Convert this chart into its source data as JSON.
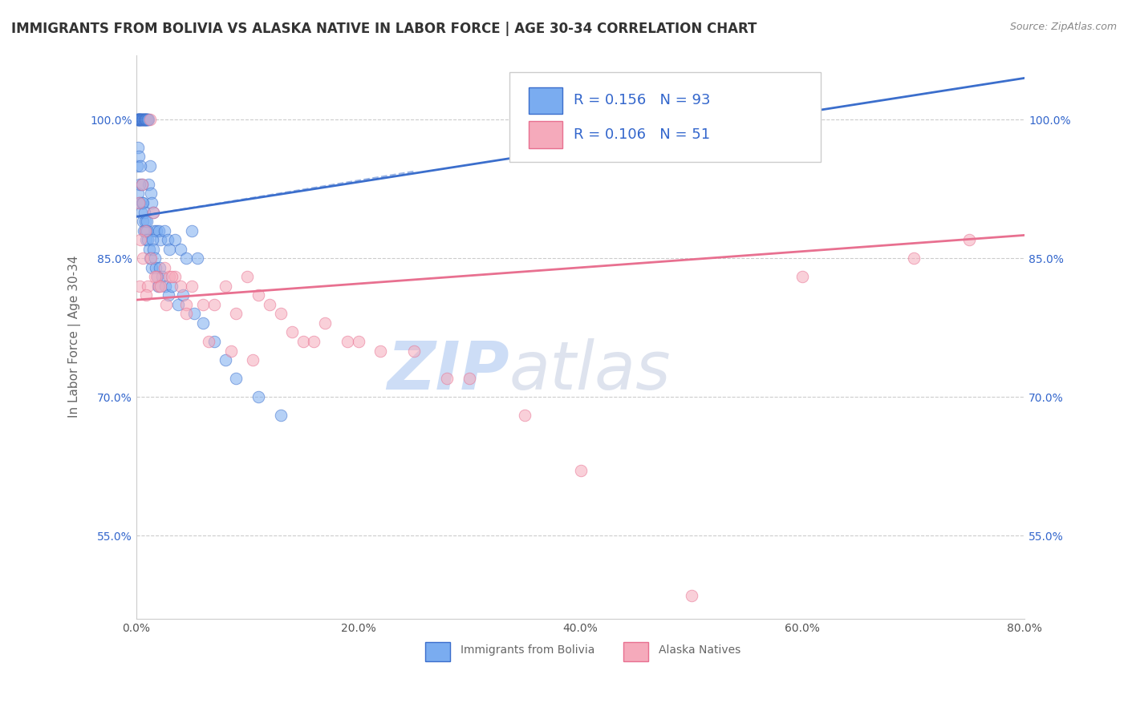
{
  "title": "IMMIGRANTS FROM BOLIVIA VS ALASKA NATIVE IN LABOR FORCE | AGE 30-34 CORRELATION CHART",
  "source_text": "Source: ZipAtlas.com",
  "ylabel": "In Labor Force | Age 30-34",
  "x_tick_labels": [
    "0.0%",
    "20.0%",
    "40.0%",
    "60.0%",
    "80.0%"
  ],
  "x_tick_values": [
    0.0,
    20.0,
    40.0,
    60.0,
    80.0
  ],
  "y_tick_labels": [
    "55.0%",
    "70.0%",
    "85.0%",
    "100.0%"
  ],
  "y_tick_values": [
    55.0,
    70.0,
    85.0,
    100.0
  ],
  "xlim": [
    0.0,
    80.0
  ],
  "ylim": [
    46.0,
    107.0
  ],
  "legend_label1": "Immigrants from Bolivia",
  "legend_label2": "Alaska Natives",
  "R1": "0.156",
  "N1": "93",
  "R2": "0.106",
  "N2": "51",
  "color_blue": "#7AACF0",
  "color_blue_dark": "#3B6ECC",
  "color_pink": "#F5AABB",
  "color_pink_dark": "#E87090",
  "color_text_blue": "#3366CC",
  "watermark_color": "#C5D8F5",
  "background_color": "#FFFFFF",
  "title_fontsize": 12,
  "axis_label_fontsize": 11,
  "tick_fontsize": 10,
  "blue_x": [
    0.1,
    0.1,
    0.15,
    0.15,
    0.2,
    0.2,
    0.25,
    0.25,
    0.3,
    0.3,
    0.35,
    0.35,
    0.4,
    0.4,
    0.45,
    0.5,
    0.5,
    0.55,
    0.6,
    0.6,
    0.65,
    0.7,
    0.7,
    0.75,
    0.8,
    0.8,
    0.85,
    0.9,
    0.9,
    0.95,
    1.0,
    1.0,
    1.1,
    1.1,
    1.2,
    1.3,
    1.4,
    1.5,
    1.6,
    1.8,
    2.0,
    2.2,
    2.5,
    2.8,
    3.0,
    3.5,
    4.0,
    4.5,
    5.0,
    5.5,
    0.1,
    0.12,
    0.18,
    0.22,
    0.28,
    0.32,
    0.38,
    0.42,
    0.48,
    0.52,
    0.58,
    0.62,
    0.68,
    0.72,
    0.78,
    0.82,
    0.88,
    0.92,
    0.98,
    1.05,
    1.15,
    1.25,
    1.35,
    1.45,
    1.55,
    1.65,
    1.75,
    1.85,
    1.95,
    2.1,
    2.3,
    2.6,
    2.9,
    3.2,
    3.8,
    4.2,
    5.2,
    6.0,
    7.0,
    8.0,
    9.0,
    11.0,
    13.0
  ],
  "blue_y": [
    100.0,
    100.0,
    100.0,
    100.0,
    100.0,
    100.0,
    100.0,
    100.0,
    100.0,
    100.0,
    100.0,
    100.0,
    100.0,
    100.0,
    100.0,
    100.0,
    100.0,
    100.0,
    100.0,
    100.0,
    100.0,
    100.0,
    100.0,
    100.0,
    100.0,
    100.0,
    100.0,
    100.0,
    100.0,
    100.0,
    100.0,
    100.0,
    100.0,
    93.0,
    95.0,
    92.0,
    91.0,
    90.0,
    88.0,
    88.0,
    88.0,
    87.0,
    88.0,
    87.0,
    86.0,
    87.0,
    86.0,
    85.0,
    88.0,
    85.0,
    95.0,
    97.0,
    92.0,
    96.0,
    93.0,
    91.0,
    95.0,
    90.0,
    91.0,
    93.0,
    89.0,
    91.0,
    88.0,
    90.0,
    89.0,
    88.0,
    87.0,
    89.0,
    88.0,
    87.0,
    86.0,
    85.0,
    84.0,
    87.0,
    86.0,
    85.0,
    84.0,
    83.0,
    82.0,
    84.0,
    83.0,
    82.0,
    81.0,
    82.0,
    80.0,
    81.0,
    79.0,
    78.0,
    76.0,
    74.0,
    72.0,
    70.0,
    68.0
  ],
  "pink_x": [
    0.2,
    0.3,
    0.5,
    0.8,
    1.0,
    1.2,
    1.5,
    1.8,
    2.0,
    2.5,
    3.0,
    3.5,
    4.0,
    4.5,
    5.0,
    6.0,
    7.0,
    8.0,
    9.0,
    10.0,
    11.0,
    12.0,
    13.0,
    14.0,
    15.0,
    17.0,
    19.0,
    22.0,
    25.0,
    28.0,
    0.4,
    0.6,
    0.9,
    1.3,
    1.7,
    2.2,
    2.7,
    3.2,
    4.5,
    6.5,
    8.5,
    10.5,
    16.0,
    20.0,
    30.0,
    35.0,
    40.0,
    50.0,
    60.0,
    70.0,
    75.0
  ],
  "pink_y": [
    91.0,
    82.0,
    93.0,
    88.0,
    82.0,
    100.0,
    90.0,
    83.0,
    82.0,
    84.0,
    83.0,
    83.0,
    82.0,
    80.0,
    82.0,
    80.0,
    80.0,
    82.0,
    79.0,
    83.0,
    81.0,
    80.0,
    79.0,
    77.0,
    76.0,
    78.0,
    76.0,
    75.0,
    75.0,
    72.0,
    87.0,
    85.0,
    81.0,
    85.0,
    83.0,
    82.0,
    80.0,
    83.0,
    79.0,
    76.0,
    75.0,
    74.0,
    76.0,
    76.0,
    72.0,
    68.0,
    62.0,
    48.5,
    83.0,
    85.0,
    87.0
  ],
  "blue_trend_x": [
    0.0,
    80.0
  ],
  "blue_trend_y": [
    89.5,
    104.5
  ],
  "pink_trend_x": [
    0.0,
    80.0
  ],
  "pink_trend_y": [
    80.5,
    87.5
  ]
}
